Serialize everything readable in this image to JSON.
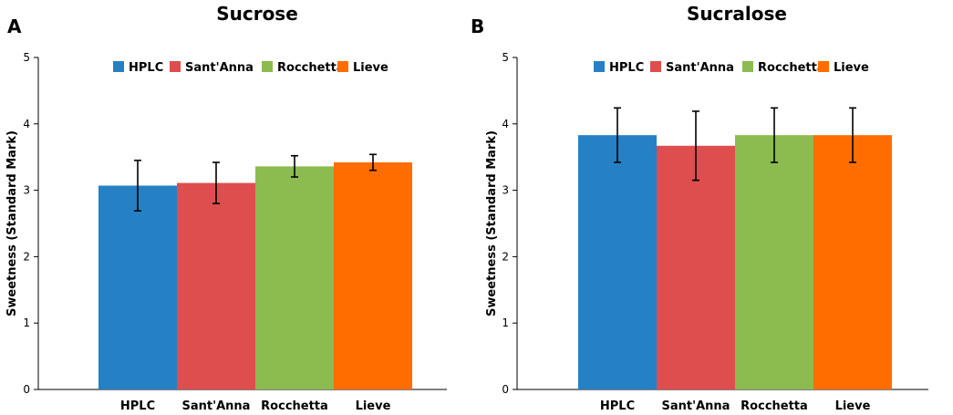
{
  "chart_data": [
    {
      "type": "bar",
      "panel": "A",
      "title": "Sucrose",
      "ylabel": "Sweetness (Standard Mark)",
      "xlabel": "",
      "ylim": [
        0,
        5
      ],
      "yticks": [
        0,
        1,
        2,
        3,
        4,
        5
      ],
      "categories": [
        "HPLC",
        "Sant'Anna",
        "Rocchetta",
        "Lieve"
      ],
      "values": [
        3.07,
        3.11,
        3.36,
        3.42
      ],
      "errors": [
        0.38,
        0.31,
        0.16,
        0.12
      ],
      "colors": [
        "#2581c4",
        "#de4e4e",
        "#8cbb50",
        "#ff6d00"
      ],
      "legend": [
        "HPLC",
        "Sant'Anna",
        "Rocchetta",
        "Lieve"
      ],
      "legend_position": "top"
    },
    {
      "type": "bar",
      "panel": "B",
      "title": "Sucralose",
      "ylabel": "Sweetness (Standard Mark)",
      "xlabel": "",
      "ylim": [
        0,
        5
      ],
      "yticks": [
        0,
        1,
        2,
        3,
        4,
        5
      ],
      "categories": [
        "HPLC",
        "Sant'Anna",
        "Rocchetta",
        "Lieve"
      ],
      "values": [
        3.83,
        3.67,
        3.83,
        3.83
      ],
      "errors": [
        0.41,
        0.52,
        0.41,
        0.41
      ],
      "colors": [
        "#2581c4",
        "#de4e4e",
        "#8cbb50",
        "#ff6d00"
      ],
      "legend": [
        "HPLC",
        "Sant'Anna",
        "Rocchetta",
        "Lieve"
      ],
      "legend_position": "top"
    }
  ]
}
